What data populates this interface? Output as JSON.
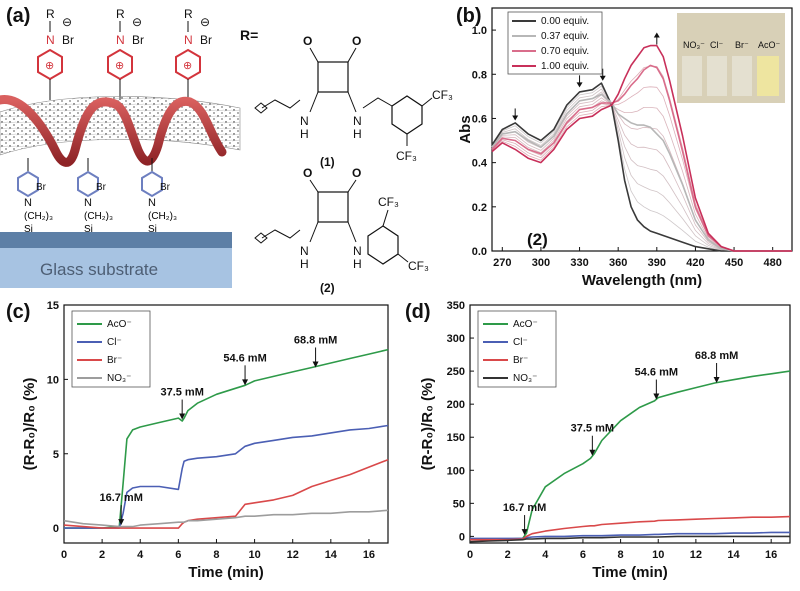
{
  "panel_labels": {
    "a": "(a)",
    "b": "(b)",
    "c": "(c)",
    "d": "(d)"
  },
  "schematic": {
    "substrate_label": "Glass substrate",
    "r_equals": "R=",
    "compound1_label": "(1)",
    "compound2_label": "(2)",
    "top_group": {
      "r": "R",
      "n": "N",
      "br": "Br",
      "minus": "⊖",
      "plus": "⊕"
    },
    "bottom_group": {
      "n": "N",
      "br": "Br",
      "chain": "(CH₂)₃",
      "si": "Si",
      "o": "O"
    },
    "r_group": {
      "o": "O",
      "nh": "NH",
      "h": "H",
      "n": "N",
      "cf3": "CF₃"
    },
    "colors": {
      "helix": "#b5393c",
      "substrate": "#a7c3e2",
      "substrate_top": "#5d7fa6",
      "pyridinium_top": "#d3343c",
      "pyridinium_bottom": "#6d7fc0"
    }
  },
  "chart_data": [
    {
      "panel": "b",
      "type": "line",
      "xlabel": "Wavelength (nm)",
      "ylabel": "Abs",
      "xlim": [
        262,
        495
      ],
      "ylim": [
        0.0,
        1.1
      ],
      "xticks": [
        270,
        300,
        330,
        360,
        390,
        420,
        450,
        480
      ],
      "yticks": [
        0.0,
        0.2,
        0.4,
        0.6,
        0.8,
        1.0
      ],
      "corner_label": "(2)",
      "x": [
        262,
        270,
        280,
        290,
        300,
        310,
        320,
        330,
        340,
        347,
        355,
        360,
        365,
        370,
        375,
        380,
        385,
        390,
        395,
        400,
        410,
        420,
        430,
        440,
        450,
        460,
        480,
        495
      ],
      "series": [
        {
          "name": "0.00 equiv.",
          "color": "#3a3a3a",
          "values": [
            0.48,
            0.55,
            0.58,
            0.53,
            0.5,
            0.55,
            0.66,
            0.72,
            0.73,
            0.76,
            0.66,
            0.5,
            0.32,
            0.2,
            0.14,
            0.11,
            0.09,
            0.08,
            0.07,
            0.06,
            0.04,
            0.02,
            0.01,
            0.0,
            0.0,
            0.0,
            0.0,
            0.0
          ]
        },
        {
          "name": "0.37 equiv.",
          "color": "#b7b7b7",
          "values": [
            0.47,
            0.53,
            0.54,
            0.5,
            0.47,
            0.52,
            0.62,
            0.68,
            0.69,
            0.71,
            0.67,
            0.62,
            0.6,
            0.58,
            0.57,
            0.57,
            0.56,
            0.53,
            0.5,
            0.44,
            0.3,
            0.14,
            0.05,
            0.01,
            0.0,
            0.0,
            0.0,
            0.0
          ]
        },
        {
          "name": "0.70 equiv.",
          "color": "#d96d8b",
          "values": [
            0.46,
            0.51,
            0.5,
            0.46,
            0.44,
            0.49,
            0.58,
            0.64,
            0.65,
            0.67,
            0.67,
            0.68,
            0.71,
            0.75,
            0.78,
            0.82,
            0.84,
            0.83,
            0.78,
            0.68,
            0.45,
            0.2,
            0.07,
            0.02,
            0.0,
            0.0,
            0.0,
            0.0
          ]
        },
        {
          "name": "1.00 equiv.",
          "color": "#c8305a",
          "values": [
            0.45,
            0.49,
            0.46,
            0.42,
            0.4,
            0.46,
            0.55,
            0.6,
            0.61,
            0.64,
            0.66,
            0.71,
            0.78,
            0.84,
            0.88,
            0.92,
            0.93,
            0.93,
            0.88,
            0.77,
            0.52,
            0.24,
            0.08,
            0.02,
            0.0,
            0.0,
            0.0,
            0.0
          ]
        }
      ],
      "legend_position": "top-left",
      "inset_photo_labels": [
        "NO₃⁻",
        "Cl⁻",
        "Br⁻",
        "AcO⁻"
      ],
      "annotation_arrows": [
        {
          "x": 280,
          "y": 0.6,
          "direction": "down"
        },
        {
          "x": 330,
          "y": 0.75,
          "direction": "down"
        },
        {
          "x": 348,
          "y": 0.78,
          "direction": "down"
        },
        {
          "x": 390,
          "y": 0.98,
          "direction": "up"
        }
      ]
    },
    {
      "panel": "c",
      "type": "line",
      "xlabel": "Time (min)",
      "ylabel": "(R-R₀)/R₀ (%)",
      "xlim": [
        0,
        17
      ],
      "ylim": [
        -1,
        15
      ],
      "xticks": [
        0,
        2,
        4,
        6,
        8,
        10,
        12,
        14,
        16
      ],
      "yticks": [
        0,
        5,
        10,
        15
      ],
      "legend_position": "top-left",
      "x": [
        0,
        1,
        2,
        2.9,
        3.1,
        3.3,
        3.6,
        4,
        5,
        6,
        6.2,
        6.3,
        6.5,
        7,
        8,
        9,
        9.5,
        10,
        11,
        12,
        13,
        14,
        15,
        16,
        17
      ],
      "series": [
        {
          "name": "AcO⁻",
          "color": "#2e9a49",
          "values": [
            0.0,
            0.0,
            0.0,
            0.1,
            3.0,
            6.0,
            6.6,
            6.8,
            7.1,
            7.4,
            7.2,
            7.4,
            7.9,
            8.4,
            9.0,
            9.4,
            9.6,
            9.9,
            10.2,
            10.5,
            10.8,
            11.1,
            11.4,
            11.7,
            12.0
          ]
        },
        {
          "name": "Cl⁻",
          "color": "#4b5fb4",
          "values": [
            0.0,
            0.0,
            0.0,
            0.0,
            1.0,
            2.4,
            2.7,
            2.8,
            2.8,
            2.6,
            4.0,
            4.5,
            4.6,
            4.7,
            4.8,
            5.0,
            5.5,
            5.7,
            5.9,
            6.1,
            6.2,
            6.4,
            6.6,
            6.7,
            6.9
          ]
        },
        {
          "name": "Br⁻",
          "color": "#d9494a",
          "values": [
            0.2,
            0.1,
            0.0,
            0.0,
            0.0,
            0.0,
            0.0,
            0.0,
            0.0,
            0.0,
            0.3,
            0.4,
            0.5,
            0.6,
            0.7,
            0.8,
            1.6,
            1.7,
            1.9,
            2.2,
            2.8,
            3.2,
            3.6,
            4.1,
            4.6
          ]
        },
        {
          "name": "NO₃⁻",
          "color": "#9d9d9d",
          "values": [
            0.5,
            0.3,
            0.2,
            0.1,
            0.1,
            0.1,
            0.1,
            0.2,
            0.3,
            0.4,
            0.4,
            0.4,
            0.5,
            0.5,
            0.6,
            0.7,
            0.8,
            0.8,
            0.9,
            0.9,
            1.0,
            1.0,
            1.1,
            1.1,
            1.2
          ]
        }
      ],
      "annotations": [
        {
          "label": "16.7 mM",
          "x": 3.0,
          "y": 0.2
        },
        {
          "label": "37.5 mM",
          "x": 6.2,
          "y": 7.3
        },
        {
          "label": "54.6 mM",
          "x": 9.5,
          "y": 9.6
        },
        {
          "label": "68.8 mM",
          "x": 13.2,
          "y": 10.8
        }
      ]
    },
    {
      "panel": "d",
      "type": "line",
      "xlabel": "Time (min)",
      "ylabel": "(R-R₀)/R₀ (%)",
      "xlim": [
        0,
        17
      ],
      "ylim": [
        -10,
        350
      ],
      "xticks": [
        0,
        2,
        4,
        6,
        8,
        10,
        12,
        14,
        16
      ],
      "yticks": [
        0,
        50,
        100,
        150,
        200,
        250,
        300,
        350
      ],
      "legend_position": "top-left",
      "x": [
        0,
        1,
        2,
        2.8,
        3.0,
        3.3,
        4,
        5,
        6,
        6.4,
        6.6,
        7,
        8,
        9,
        9.8,
        10,
        11,
        12,
        13,
        14,
        15,
        16,
        17
      ],
      "series": [
        {
          "name": "AcO⁻",
          "color": "#2e9a49",
          "values": [
            -5,
            -5,
            -4,
            -3,
            5,
            40,
            75,
            95,
            110,
            118,
            125,
            145,
            175,
            195,
            205,
            210,
            218,
            225,
            232,
            237,
            242,
            246,
            250
          ]
        },
        {
          "name": "Cl⁻",
          "color": "#4b5fb4",
          "values": [
            -3,
            -3,
            -3,
            -3,
            -2,
            -1,
            0,
            0,
            1,
            1,
            1,
            1,
            2,
            2,
            3,
            3,
            4,
            4,
            4,
            5,
            5,
            6,
            6
          ]
        },
        {
          "name": "Br⁻",
          "color": "#d9494a",
          "values": [
            -5,
            -5,
            -5,
            -4,
            0,
            4,
            8,
            12,
            15,
            16,
            16,
            18,
            20,
            22,
            23,
            24,
            25,
            26,
            27,
            28,
            29,
            29,
            30
          ]
        },
        {
          "name": "NO₃⁻",
          "color": "#333333",
          "values": [
            -8,
            -7,
            -6,
            -5,
            -4,
            -4,
            -3,
            -3,
            -2,
            -2,
            -2,
            -2,
            -1,
            -1,
            -1,
            -1,
            0,
            0,
            0,
            0,
            0,
            0,
            0
          ]
        }
      ],
      "annotations": [
        {
          "label": "16.7 mM",
          "x": 2.9,
          "y": 2
        },
        {
          "label": "37.5 mM",
          "x": 6.5,
          "y": 122
        },
        {
          "label": "54.6 mM",
          "x": 9.9,
          "y": 207
        },
        {
          "label": "68.8 mM",
          "x": 13.1,
          "y": 232
        }
      ]
    }
  ]
}
